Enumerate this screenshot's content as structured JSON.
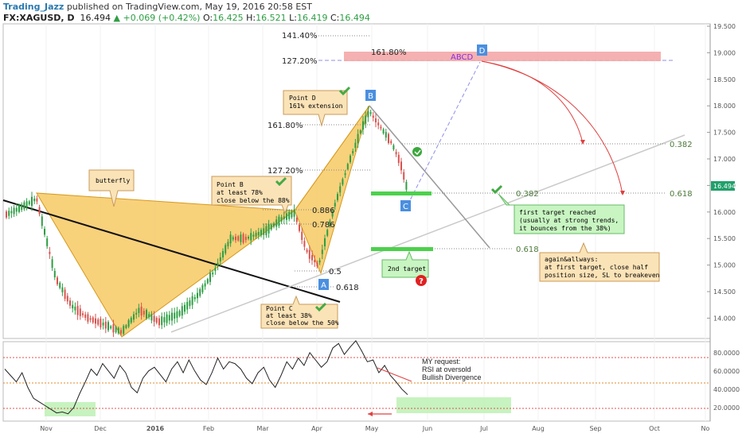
{
  "header": {
    "author": "Trading_Jazz",
    "published": "published on TradingView.com, May 19, 2016 20:58 EST",
    "symbol": "FX:XAGUSD, D",
    "last": "16.494",
    "change": "+0.069 (+0.42%)",
    "o_label": "O:",
    "o_value": "16.425",
    "h_label": "H:",
    "h_value": "16.521",
    "l_label": "L:",
    "l_value": "16.419",
    "c_label": "C:",
    "c_value": "16.494"
  },
  "chart_data": [
    {
      "type": "candlestick",
      "title": "FX:XAGUSD, D",
      "x_ticks": [
        "Nov",
        "Dec",
        "2016",
        "Feb",
        "Mar",
        "Apr",
        "May",
        "Jun",
        "Jul",
        "Aug",
        "Sep",
        "Oct",
        "No"
      ],
      "y_ticks": [
        "19.500",
        "19.000",
        "18.500",
        "18.000",
        "17.500",
        "17.000",
        "16.500",
        "16.000",
        "15.500",
        "15.000",
        "14.500",
        "14.000"
      ],
      "ylim": [
        13.6,
        19.55
      ],
      "last_price": "16.494",
      "colors": {
        "up": "#2e9e44",
        "down": "#d9534f",
        "pattern_fill": "#f6c55a"
      },
      "pattern_points": [
        {
          "label": "A",
          "date": "Apr",
          "price": 14.8
        },
        {
          "label": "B",
          "date": "Apr end",
          "price": 18.0
        },
        {
          "label": "C",
          "date": "May",
          "price": 16.35
        },
        {
          "label": "D",
          "date": "Jul",
          "price": 18.85
        }
      ],
      "fib_labels_left": [
        "141.40%",
        "127.20%",
        "161.80%",
        "127.20%",
        "0.886",
        "0.786",
        "0.5",
        "0.618"
      ],
      "fib_labels_right": [
        "0.382",
        "0.618",
        "0.382",
        "0.618"
      ],
      "zone_labels": [
        "161.80%",
        "ABCD"
      ],
      "notes": {
        "butterfly": "butterfly",
        "point_d": [
          "Point D",
          "161% extension"
        ],
        "point_b": [
          "Point B",
          "at least 78%",
          "close below the 88%"
        ],
        "point_c": [
          "Point C",
          "at least 38%",
          "close below the 50%"
        ],
        "first_target": [
          "first target reached",
          "(usually at strong trends,",
          "it bounces from the 38%)"
        ],
        "second_target": "2nd target",
        "again": [
          "again&allways:",
          "at first target, close half",
          "position size, SL to breakeven"
        ],
        "question": "?"
      }
    },
    {
      "type": "line",
      "name": "RSI",
      "y_ticks": [
        "80.0000",
        "60.0000",
        "40.0000",
        "20.0000"
      ],
      "ylim": [
        5,
        92
      ],
      "levels": [
        80,
        50,
        20
      ],
      "note": [
        "MY request:",
        "RSI at oversold",
        "Bullish Divergence"
      ],
      "values": [
        62,
        55,
        48,
        58,
        42,
        30,
        26,
        22,
        18,
        14,
        15,
        13,
        20,
        35,
        48,
        62,
        55,
        68,
        60,
        52,
        66,
        58,
        42,
        36,
        52,
        60,
        64,
        56,
        48,
        62,
        70,
        58,
        72,
        60,
        50,
        45,
        58,
        74,
        62,
        70,
        68,
        62,
        52,
        46,
        58,
        64,
        50,
        42,
        55,
        70,
        62,
        74,
        66,
        80,
        72,
        64,
        70,
        85,
        90,
        78,
        86,
        93,
        82,
        70,
        72,
        58,
        66,
        55,
        48,
        40,
        34
      ]
    }
  ]
}
